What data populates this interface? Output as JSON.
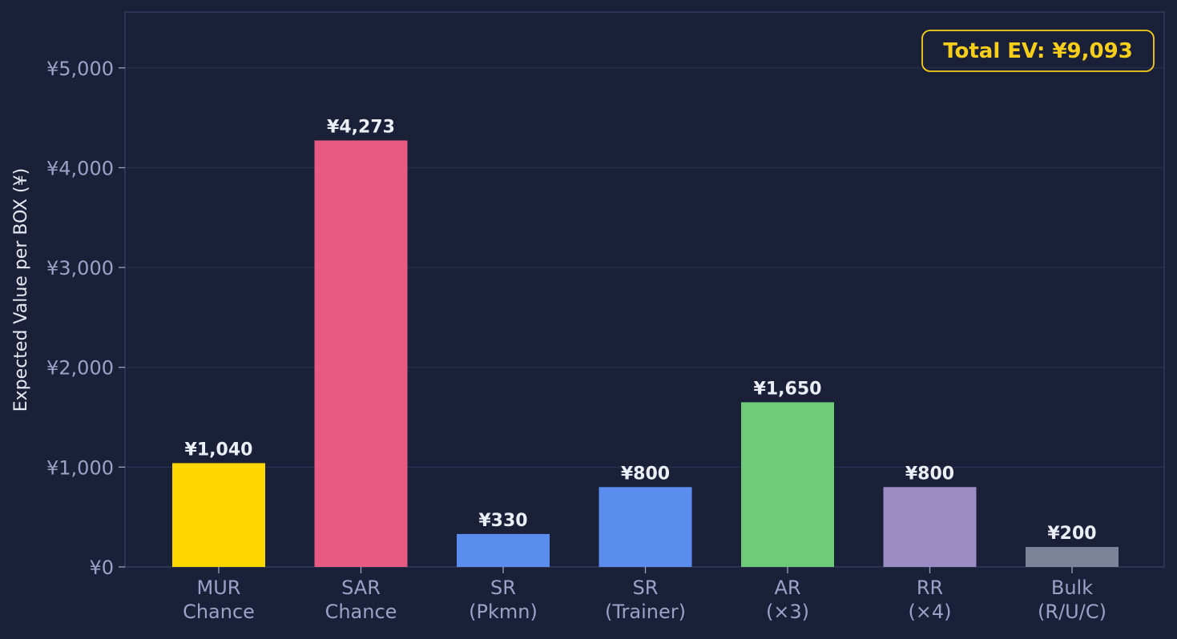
{
  "chart_data": {
    "type": "bar",
    "title": "",
    "xlabel": "",
    "ylabel": "Expected Value per BOX (¥)",
    "ylim": [
      0,
      5560
    ],
    "yticks": [
      0,
      1000,
      2000,
      3000,
      4000,
      5000
    ],
    "ytick_labels": [
      "¥0",
      "¥1,000",
      "¥2,000",
      "¥3,000",
      "¥4,000",
      "¥5,000"
    ],
    "grid": "horizontal",
    "categories": [
      [
        "MUR",
        "Chance"
      ],
      [
        "SAR",
        "Chance"
      ],
      [
        "SR",
        "(Pkmn)"
      ],
      [
        "SR",
        "(Trainer)"
      ],
      [
        "AR",
        "(×3)"
      ],
      [
        "RR",
        "(×4)"
      ],
      [
        "Bulk",
        "(R/U/C)"
      ]
    ],
    "values": [
      1040,
      4273,
      330,
      800,
      1650,
      800,
      200
    ],
    "value_labels": [
      "¥1,040",
      "¥4,273",
      "¥330",
      "¥800",
      "¥1,650",
      "¥800",
      "¥200"
    ],
    "colors": [
      "#ffd700",
      "#e85a82",
      "#5b8def",
      "#5b8def",
      "#6ecb78",
      "#9b8cc4",
      "#7c8399"
    ],
    "annotation": {
      "text": "Total EV: ¥9,093",
      "placement": "top-right",
      "color": "#f7cf1a"
    },
    "background": "#1b2039",
    "grid_color": "#283052",
    "axis_color": "#333b5c"
  }
}
